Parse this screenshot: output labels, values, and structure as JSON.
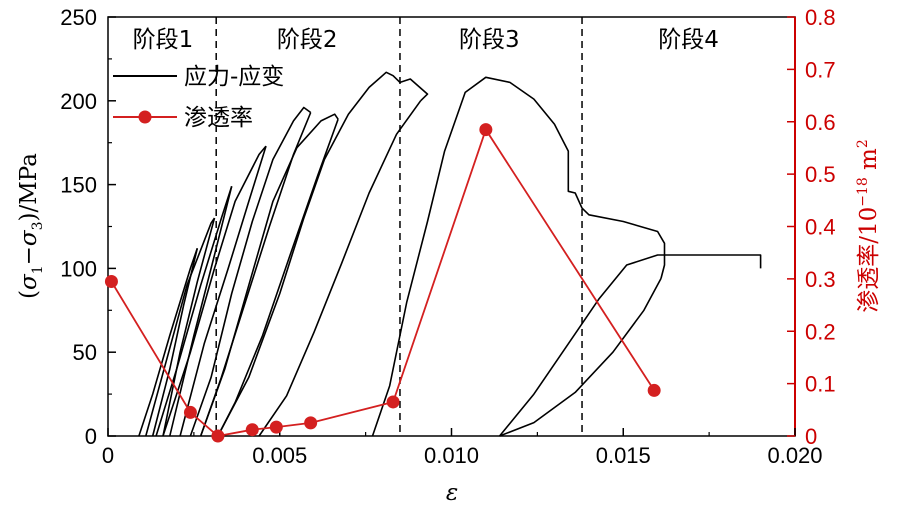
{
  "chart_data": {
    "type": "line",
    "xlabel": "ε",
    "ylabel": "(σ1−σ3)/MPa",
    "ylabel_right": "渗透率/10⁻¹⁸ m²",
    "xlim": [
      0,
      0.02
    ],
    "ylim": [
      0,
      250
    ],
    "ylim_right": [
      0,
      0.8
    ],
    "x_ticks": [
      "0",
      "0.005",
      "0.010",
      "0.015",
      "0.020"
    ],
    "x_tick_values": [
      0,
      0.005,
      0.01,
      0.015,
      0.02
    ],
    "y_ticks": [
      "0",
      "50",
      "100",
      "150",
      "200",
      "250"
    ],
    "y_tick_values": [
      0,
      50,
      100,
      150,
      200,
      250
    ],
    "y_ticks_right": [
      "0",
      "0.1",
      "0.2",
      "0.3",
      "0.4",
      "0.5",
      "0.6",
      "0.7",
      "0.8"
    ],
    "y_tick_values_right": [
      0,
      0.1,
      0.2,
      0.3,
      0.4,
      0.5,
      0.6,
      0.7,
      0.8
    ],
    "stage_boundaries": [
      0.00315,
      0.0085,
      0.0138
    ],
    "stages": [
      {
        "label": "阶段1",
        "x": 0.0016
      },
      {
        "label": "阶段2",
        "x": 0.0058
      },
      {
        "label": "阶段3",
        "x": 0.0111
      },
      {
        "label": "阶段4",
        "x": 0.0169
      }
    ],
    "legend": {
      "position": "top-left",
      "entries": [
        "应力-应变",
        "渗透率"
      ]
    },
    "colors": {
      "stress": "#000000",
      "permeability": "#d42020",
      "grid_dashes": "#000000"
    },
    "permeability_series": {
      "name": "渗透率",
      "axis": "right",
      "points": [
        [
          0.0001,
          0.295
        ],
        [
          0.0024,
          0.045
        ],
        [
          0.0032,
          0.0
        ],
        [
          0.0042,
          0.012
        ],
        [
          0.0049,
          0.017
        ],
        [
          0.0059,
          0.025
        ],
        [
          0.0083,
          0.065
        ],
        [
          0.011,
          0.585
        ],
        [
          0.0159,
          0.087
        ]
      ]
    },
    "stress_series": {
      "name": "应力-应变",
      "axis": "left",
      "segments": [
        [
          [
            0.0009,
            0
          ],
          [
            0.0013,
            25
          ],
          [
            0.0018,
            60
          ],
          [
            0.0024,
            100
          ],
          [
            0.0026,
            112
          ]
        ],
        [
          [
            0.0026,
            112
          ],
          [
            0.0022,
            78
          ],
          [
            0.0018,
            40
          ],
          [
            0.0013,
            0
          ]
        ],
        [
          [
            0.0011,
            0
          ],
          [
            0.0017,
            45
          ],
          [
            0.0023,
            90
          ],
          [
            0.003,
            127
          ],
          [
            0.0031,
            130
          ]
        ],
        [
          [
            0.0031,
            130
          ],
          [
            0.0026,
            92
          ],
          [
            0.0021,
            50
          ],
          [
            0.0016,
            0
          ]
        ],
        [
          [
            0.0014,
            0
          ],
          [
            0.002,
            40
          ],
          [
            0.0027,
            90
          ],
          [
            0.0033,
            130
          ],
          [
            0.0036,
            149
          ]
        ],
        [
          [
            0.0036,
            149
          ],
          [
            0.0031,
            108
          ],
          [
            0.0025,
            60
          ],
          [
            0.0018,
            0
          ]
        ],
        [
          [
            0.0016,
            0
          ],
          [
            0.0024,
            50
          ],
          [
            0.0031,
            100
          ],
          [
            0.0037,
            140
          ],
          [
            0.0044,
            168
          ],
          [
            0.0046,
            173
          ]
        ],
        [
          [
            0.0046,
            173
          ],
          [
            0.0041,
            140
          ],
          [
            0.0035,
            100
          ],
          [
            0.0028,
            55
          ],
          [
            0.0021,
            0
          ]
        ],
        [
          [
            0.0024,
            0
          ],
          [
            0.003,
            35
          ],
          [
            0.0036,
            85
          ],
          [
            0.0042,
            128
          ],
          [
            0.0048,
            165
          ],
          [
            0.0054,
            188
          ],
          [
            0.0057,
            196
          ],
          [
            0.0059,
            193
          ]
        ],
        [
          [
            0.0059,
            193
          ],
          [
            0.0054,
            168
          ],
          [
            0.0047,
            125
          ],
          [
            0.004,
            80
          ],
          [
            0.0033,
            35
          ],
          [
            0.0027,
            0
          ]
        ],
        [
          [
            0.0027,
            0
          ],
          [
            0.0034,
            40
          ],
          [
            0.0041,
            90
          ],
          [
            0.0048,
            140
          ],
          [
            0.0055,
            172
          ],
          [
            0.0062,
            188
          ],
          [
            0.0066,
            192
          ],
          [
            0.0067,
            189
          ]
        ],
        [
          [
            0.0067,
            189
          ],
          [
            0.0061,
            155
          ],
          [
            0.0053,
            108
          ],
          [
            0.0045,
            60
          ],
          [
            0.0037,
            20
          ],
          [
            0.0032,
            0
          ]
        ],
        [
          [
            0.0032,
            0
          ],
          [
            0.0041,
            35
          ],
          [
            0.005,
            85
          ],
          [
            0.0057,
            130
          ],
          [
            0.0063,
            165
          ],
          [
            0.007,
            192
          ],
          [
            0.0076,
            208
          ],
          [
            0.0081,
            217
          ],
          [
            0.0083,
            215
          ],
          [
            0.0085,
            211
          ],
          [
            0.0088,
            213
          ],
          [
            0.0093,
            204
          ],
          [
            0.0091,
            200
          ]
        ],
        [
          [
            0.0091,
            200
          ],
          [
            0.0084,
            180
          ],
          [
            0.0076,
            145
          ],
          [
            0.0068,
            103
          ],
          [
            0.006,
            62
          ],
          [
            0.0052,
            24
          ],
          [
            0.0044,
            0
          ]
        ],
        [
          [
            0.0077,
            0
          ],
          [
            0.0082,
            30
          ],
          [
            0.0087,
            80
          ],
          [
            0.0093,
            128
          ],
          [
            0.0098,
            170
          ],
          [
            0.0104,
            205
          ],
          [
            0.011,
            214
          ],
          [
            0.0117,
            211
          ],
          [
            0.0124,
            201
          ],
          [
            0.013,
            186
          ],
          [
            0.0134,
            170
          ],
          [
            0.0134,
            146
          ],
          [
            0.0136,
            145
          ],
          [
            0.0138,
            136
          ],
          [
            0.014,
            132
          ],
          [
            0.015,
            128
          ],
          [
            0.016,
            122
          ],
          [
            0.0162,
            115
          ],
          [
            0.0162,
            102
          ],
          [
            0.0161,
            94
          ]
        ],
        [
          [
            0.0161,
            94
          ],
          [
            0.0156,
            75
          ],
          [
            0.0147,
            50
          ],
          [
            0.0136,
            26
          ],
          [
            0.0124,
            8
          ],
          [
            0.0114,
            0
          ]
        ],
        [
          [
            0.0114,
            0
          ],
          [
            0.0124,
            25
          ],
          [
            0.0134,
            55
          ],
          [
            0.0143,
            82
          ],
          [
            0.0151,
            102
          ],
          [
            0.016,
            108
          ],
          [
            0.0175,
            108
          ],
          [
            0.019,
            108
          ],
          [
            0.019,
            100
          ]
        ]
      ]
    }
  }
}
